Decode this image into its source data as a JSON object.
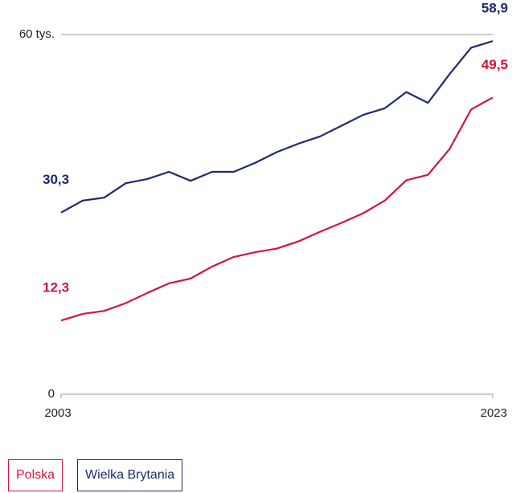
{
  "chart_data": {
    "type": "line",
    "x": [
      2003,
      2004,
      2005,
      2006,
      2007,
      2008,
      2009,
      2010,
      2011,
      2012,
      2013,
      2014,
      2015,
      2016,
      2017,
      2018,
      2019,
      2020,
      2021,
      2022,
      2023
    ],
    "xlim": [
      2003,
      2023
    ],
    "xticks": [
      2003,
      2023
    ],
    "ylim": [
      0,
      60
    ],
    "yticks": [
      0,
      {
        "value": 60,
        "label": "60 tys."
      }
    ],
    "grid": true,
    "series": [
      {
        "name": "Polska",
        "color": "#d4143c",
        "values": [
          12.3,
          13.4,
          13.9,
          15.2,
          16.9,
          18.5,
          19.3,
          21.3,
          22.9,
          23.7,
          24.3,
          25.5,
          27.1,
          28.6,
          30.2,
          32.3,
          35.7,
          36.6,
          40.9,
          47.5,
          49.5
        ],
        "value_labels": [
          "12,3",
          null,
          null,
          null,
          null,
          null,
          null,
          null,
          null,
          null,
          null,
          null,
          null,
          null,
          null,
          null,
          null,
          null,
          null,
          null,
          "49,5"
        ]
      },
      {
        "name": "Wielka Brytania",
        "color": "#1f2a6b",
        "values": [
          30.3,
          32.3,
          32.8,
          35.2,
          35.9,
          37.1,
          35.6,
          37.1,
          37.1,
          38.6,
          40.4,
          41.8,
          43.0,
          44.8,
          46.6,
          47.7,
          50.4,
          48.6,
          53.4,
          57.8,
          58.9
        ],
        "value_labels": [
          "30,3",
          null,
          null,
          null,
          null,
          null,
          null,
          null,
          null,
          null,
          null,
          null,
          null,
          null,
          null,
          null,
          null,
          null,
          null,
          null,
          "58,9"
        ]
      }
    ]
  }
}
